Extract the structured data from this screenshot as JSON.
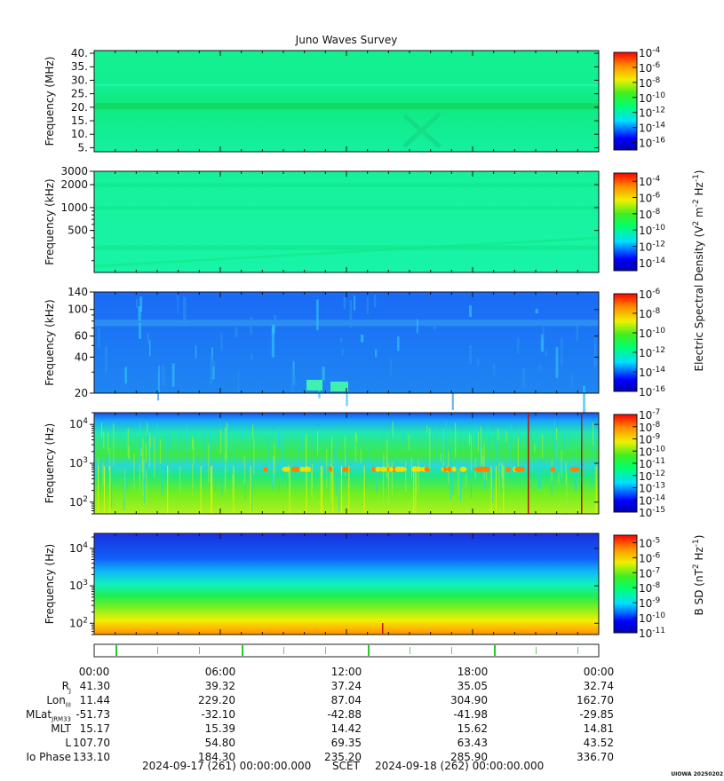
{
  "title": "Juno Waves Survey",
  "stamp": "UIOWA 20250202",
  "chart_data": [
    {
      "type": "heatmap",
      "ylabel": "Frequency (MHz)",
      "yscale": "linear",
      "ylim": [
        3.5,
        41
      ],
      "yticks": [
        "40.",
        "35.",
        "30.",
        "25.",
        "20.",
        "15.",
        "10.",
        "5."
      ],
      "ytick_values": [
        40,
        35,
        30,
        25,
        20,
        15,
        10,
        5
      ],
      "colorbar_ticks": [
        "-4",
        "-6",
        "-8",
        "-10",
        "-12",
        "-14",
        "-16"
      ],
      "colorbar_range": [
        -17,
        -4
      ]
    },
    {
      "type": "heatmap",
      "ylabel": "Frequency (kHz)",
      "yscale": "log",
      "ylim": [
        140,
        3000
      ],
      "yticks": [
        "3000",
        "2000",
        "1000",
        "500"
      ],
      "ytick_values": [
        3000,
        2000,
        1000,
        500
      ],
      "colorbar_ticks": [
        "-4",
        "-6",
        "-8",
        "-10",
        "-12",
        "-14"
      ],
      "colorbar_range": [
        -15,
        -3
      ]
    },
    {
      "type": "heatmap",
      "ylabel": "Frequency (kHz)",
      "yscale": "log",
      "ylim": [
        20,
        140
      ],
      "yticks": [
        "140",
        "100",
        "60",
        "40",
        "20"
      ],
      "ytick_values": [
        140,
        100,
        60,
        40,
        20
      ],
      "colorbar_ticks": [
        "-6",
        "-8",
        "-10",
        "-12",
        "-14",
        "-16"
      ],
      "colorbar_range": [
        -16,
        -6
      ]
    },
    {
      "type": "heatmap",
      "ylabel": "Frequency (Hz)",
      "yscale": "log",
      "ylim": [
        50,
        20000
      ],
      "ytick_exponents": [
        "4",
        "3",
        "2"
      ],
      "ytick_values": [
        10000,
        1000,
        100
      ],
      "colorbar_ticks": [
        "-7",
        "-8",
        "-9",
        "-10",
        "-11",
        "-12",
        "-13",
        "-14",
        "-15"
      ],
      "colorbar_range": [
        -15,
        -7
      ]
    },
    {
      "type": "heatmap",
      "ylabel": "Frequency (Hz)",
      "yscale": "log",
      "ylim": [
        50,
        25000
      ],
      "ytick_exponents": [
        "4",
        "3",
        "2"
      ],
      "ytick_values": [
        10000,
        1000,
        100
      ],
      "colorbar_ticks": [
        "-5",
        "-6",
        "-7",
        "-8",
        "-9",
        "-10",
        "-11"
      ],
      "colorbar_range": [
        -11,
        -4.5
      ]
    }
  ],
  "e_density_label": "Electric Spectral Density (V",
  "e_density_sup1": "2",
  "e_density_mid": " m",
  "e_density_sup2": "-2",
  "e_density_mid2": " Hz",
  "e_density_sup3": "-1",
  "e_density_end": ")",
  "b_label": "B SD (nT",
  "b_sup1": "2",
  "b_mid": " Hz",
  "b_sup2": "-1",
  "b_end": ")",
  "ephemeris": {
    "times": [
      "00:00",
      "06:00",
      "12:00",
      "18:00",
      "00:00"
    ],
    "rows": [
      {
        "label": "R",
        "sub": "J",
        "values": [
          "41.30",
          "39.32",
          "37.24",
          "35.05",
          "32.74"
        ]
      },
      {
        "label": "Lon",
        "sub": "III",
        "values": [
          "11.44",
          "229.20",
          "87.04",
          "304.90",
          "162.70"
        ]
      },
      {
        "label": "MLat",
        "sub": "JRM33",
        "values": [
          "-51.73",
          "-32.10",
          "-42.88",
          "-41.98",
          "-29.85"
        ]
      },
      {
        "label": "MLT",
        "sub": "",
        "values": [
          "15.17",
          "15.39",
          "14.42",
          "15.62",
          "14.81"
        ]
      },
      {
        "label": "L",
        "sub": "",
        "values": [
          "107.70",
          "54.80",
          "69.35",
          "63.43",
          "43.52"
        ]
      },
      {
        "label": "Io Phase",
        "sub": "",
        "values": [
          "133.10",
          "184.30",
          "235.20",
          "285.90",
          "336.70"
        ]
      }
    ]
  },
  "footer": {
    "start": "2024-09-17 (261) 00:00:00.000",
    "scet": "SCET",
    "end": "2024-09-18 (262) 00:00:00.000"
  }
}
